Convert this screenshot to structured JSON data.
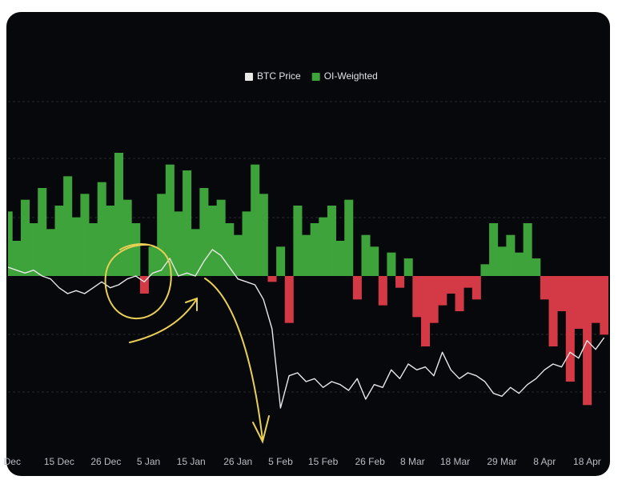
{
  "chart_data": {
    "type": "bar-line",
    "x": [
      2,
      4,
      6,
      8,
      10,
      12,
      14,
      16,
      18,
      20,
      22,
      24,
      26,
      28,
      30,
      32,
      34,
      36,
      38,
      40,
      42,
      44,
      46,
      48,
      50,
      52,
      54,
      56,
      58,
      60,
      62,
      64,
      66,
      68,
      70,
      72,
      74,
      76,
      78,
      80,
      82,
      84,
      86,
      88,
      90,
      92,
      94,
      96,
      98,
      100,
      102,
      104,
      106,
      108,
      110,
      112,
      114,
      116,
      118,
      120,
      122,
      124,
      126,
      128,
      130,
      132,
      134,
      136,
      138,
      140,
      142
    ],
    "xlim": [
      2,
      143
    ],
    "xticks": [
      {
        "value": 3,
        "label": "Dec"
      },
      {
        "value": 14,
        "label": "15 Dec"
      },
      {
        "value": 25,
        "label": "26 Dec"
      },
      {
        "value": 35,
        "label": "5 Jan"
      },
      {
        "value": 45,
        "label": "15 Jan"
      },
      {
        "value": 56,
        "label": "26 Jan"
      },
      {
        "value": 66,
        "label": "5 Feb"
      },
      {
        "value": 76,
        "label": "15 Feb"
      },
      {
        "value": 87,
        "label": "26 Feb"
      },
      {
        "value": 97,
        "label": "8 Mar"
      },
      {
        "value": 107,
        "label": "18 Mar"
      },
      {
        "value": 118,
        "label": "29 Mar"
      },
      {
        "value": 128,
        "label": "8 Apr"
      },
      {
        "value": 138,
        "label": "18 Apr"
      }
    ],
    "ylim": [
      -3,
      3
    ],
    "y2lim": [
      -3,
      3
    ],
    "legend": "top",
    "series": [
      {
        "name": "OI-Weighted",
        "color": "#3da33a",
        "negative_color": "#d43a46",
        "values": [
          1.1,
          0.6,
          1.3,
          0.9,
          1.5,
          0.8,
          1.2,
          1.7,
          1.0,
          1.4,
          0.9,
          1.6,
          1.2,
          2.1,
          1.3,
          0.9,
          -0.3,
          0.5,
          1.4,
          1.9,
          1.1,
          1.8,
          0.8,
          1.5,
          1.2,
          1.3,
          0.9,
          0.7,
          1.1,
          1.9,
          1.4,
          -0.1,
          0.5,
          -0.8,
          1.2,
          0.7,
          0.9,
          1.0,
          1.2,
          0.6,
          1.3,
          -0.4,
          0.7,
          0.5,
          -0.5,
          0.4,
          -0.2,
          0.3,
          -0.7,
          -1.2,
          -0.8,
          -0.5,
          -0.3,
          -0.6,
          -0.2,
          -0.4,
          0.2,
          0.9,
          0.5,
          0.7,
          0.4,
          0.9,
          0.3,
          -0.4,
          -1.2,
          -0.6,
          -1.8,
          -0.9,
          -2.2,
          -0.8,
          -1.0
        ]
      },
      {
        "name": "BTC Price",
        "color": "#e8e8e8",
        "axis": "y2",
        "values": [
          0.15,
          0.1,
          0.05,
          0.1,
          0.0,
          -0.05,
          -0.2,
          -0.3,
          -0.25,
          -0.3,
          -0.2,
          -0.1,
          -0.2,
          -0.15,
          -0.05,
          0.0,
          -0.1,
          0.05,
          0.1,
          0.3,
          0.0,
          0.05,
          0.0,
          0.25,
          0.45,
          0.35,
          0.15,
          -0.05,
          -0.1,
          -0.15,
          -0.4,
          -0.9,
          -2.25,
          -1.7,
          -1.65,
          -1.8,
          -1.75,
          -1.9,
          -1.8,
          -1.85,
          -1.95,
          -1.75,
          -2.1,
          -1.85,
          -1.9,
          -1.6,
          -1.75,
          -1.5,
          -1.6,
          -1.55,
          -1.7,
          -1.3,
          -1.6,
          -1.75,
          -1.65,
          -1.7,
          -1.8,
          -2.0,
          -2.05,
          -1.9,
          -2.0,
          -1.85,
          -1.75,
          -1.6,
          -1.5,
          -1.55,
          -1.3,
          -1.4,
          -1.1,
          -1.25,
          -1.05
        ]
      }
    ]
  }
}
